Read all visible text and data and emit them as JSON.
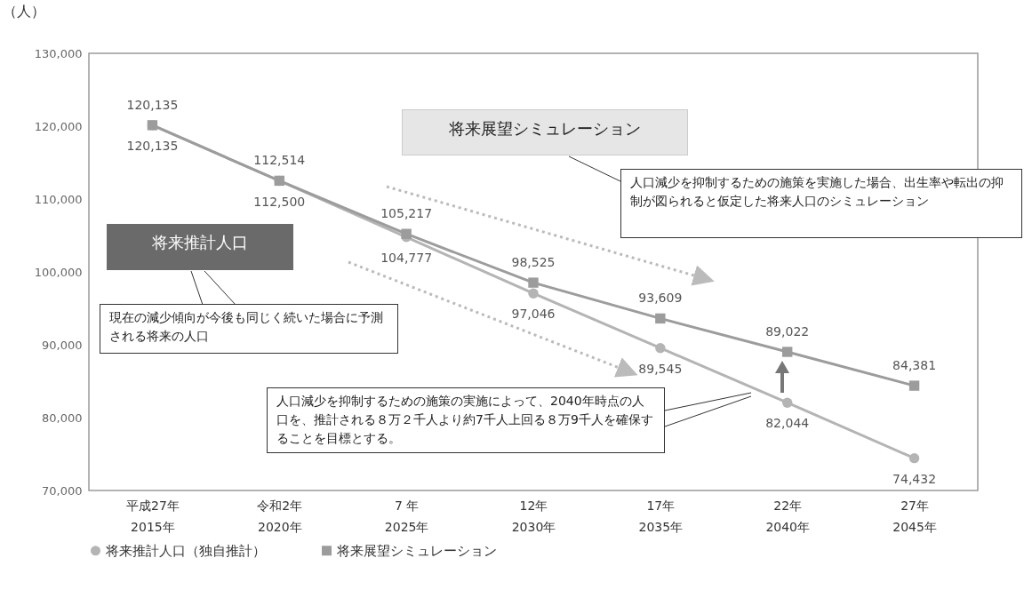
{
  "chart_data": {
    "type": "line",
    "ylabel": "（人）",
    "categories": [
      "平成27年\n2015年",
      "令和2年\n2020年",
      "7 年\n2025年",
      "12年\n2030年",
      "17年\n2035年",
      "22年\n2040年",
      "27年\n2045年"
    ],
    "ylim": [
      70000,
      130000
    ],
    "yticks": [
      {
        "value": 70000,
        "label": "70,000"
      },
      {
        "value": 80000,
        "label": "80,000"
      },
      {
        "value": 90000,
        "label": "90,000"
      },
      {
        "value": 100000,
        "label": "100,000"
      },
      {
        "value": 110000,
        "label": "110,000"
      },
      {
        "value": 120000,
        "label": "120,000"
      },
      {
        "value": 130000,
        "label": "130,000"
      }
    ],
    "series": [
      {
        "name": "将来推計人口（独自推計）",
        "color": "#b4b4b4",
        "marker": "circle",
        "values": [
          120135,
          112500,
          104777,
          97046,
          89545,
          82044,
          74432
        ],
        "value_labels": [
          "120,135",
          "112,500",
          "104,777",
          "97,046",
          "89,545",
          "82,044",
          "74,432"
        ]
      },
      {
        "name": "将来展望シミュレーション",
        "color": "#9c9c9c",
        "marker": "square",
        "values": [
          120135,
          112514,
          105217,
          98525,
          93609,
          89022,
          84381
        ],
        "value_labels": [
          "120,135",
          "112,514",
          "105,217",
          "98,525",
          "93,609",
          "89,022",
          "84,381"
        ]
      }
    ],
    "grid": false,
    "legend": "bottom",
    "line_style": "solid",
    "annotations": [
      "将来展望シミュレーション",
      "人口減少を抑制するための施策を実施した場合、出生率や転出の抑制が図られると仮定した将来人口のシミュレーション",
      "将来推計人口",
      "現在の減少傾向が今後も同じく続いた場合に予測される将来の人口",
      "人口減少を抑制するための施策の実施によって、2040年時点の人口を、推計される８万２千人より約7千人上回る８万9千人を確保することを目標とする。"
    ]
  }
}
